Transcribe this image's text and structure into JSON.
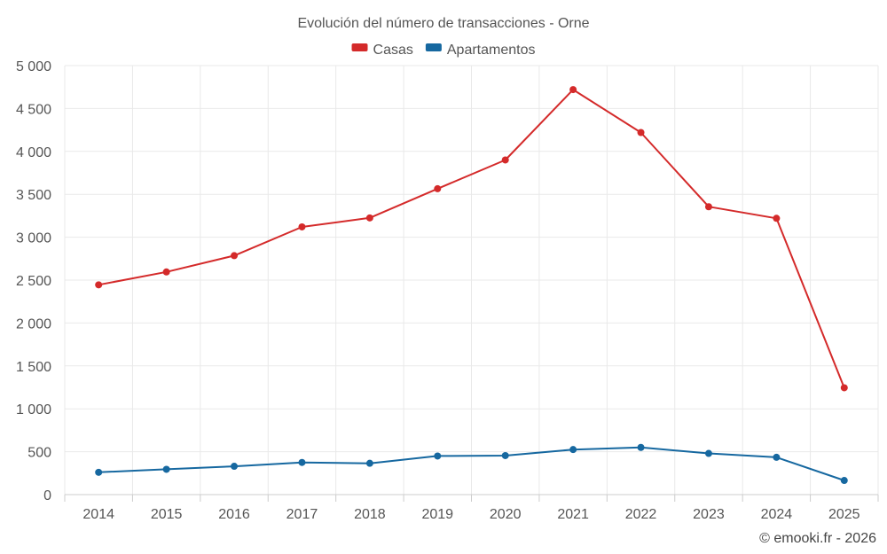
{
  "chart_data": {
    "type": "line",
    "title": "Evolución del número de transacciones - Orne",
    "categories": [
      "2014",
      "2015",
      "2016",
      "2017",
      "2018",
      "2019",
      "2020",
      "2021",
      "2022",
      "2023",
      "2024",
      "2025"
    ],
    "series": [
      {
        "name": "Casas",
        "color": "#d42a2a",
        "values": [
          2445,
          2595,
          2785,
          3120,
          3225,
          3565,
          3900,
          4720,
          4220,
          3355,
          3220,
          1245
        ]
      },
      {
        "name": "Apartamentos",
        "color": "#1668a0",
        "values": [
          260,
          295,
          330,
          375,
          365,
          450,
          455,
          525,
          550,
          480,
          435,
          165
        ]
      }
    ],
    "ylim": [
      0,
      5000
    ],
    "yticks": [
      0,
      500,
      1000,
      1500,
      2000,
      2500,
      3000,
      3500,
      4000,
      4500,
      5000
    ],
    "ytick_labels": [
      "0",
      "500",
      "1 000",
      "1 500",
      "2 000",
      "2 500",
      "3 000",
      "3 500",
      "4 000",
      "4 500",
      "5 000"
    ],
    "legend_position": "top-center",
    "grid": true
  },
  "footer": {
    "copyright": "© emooki.fr - 2026"
  }
}
